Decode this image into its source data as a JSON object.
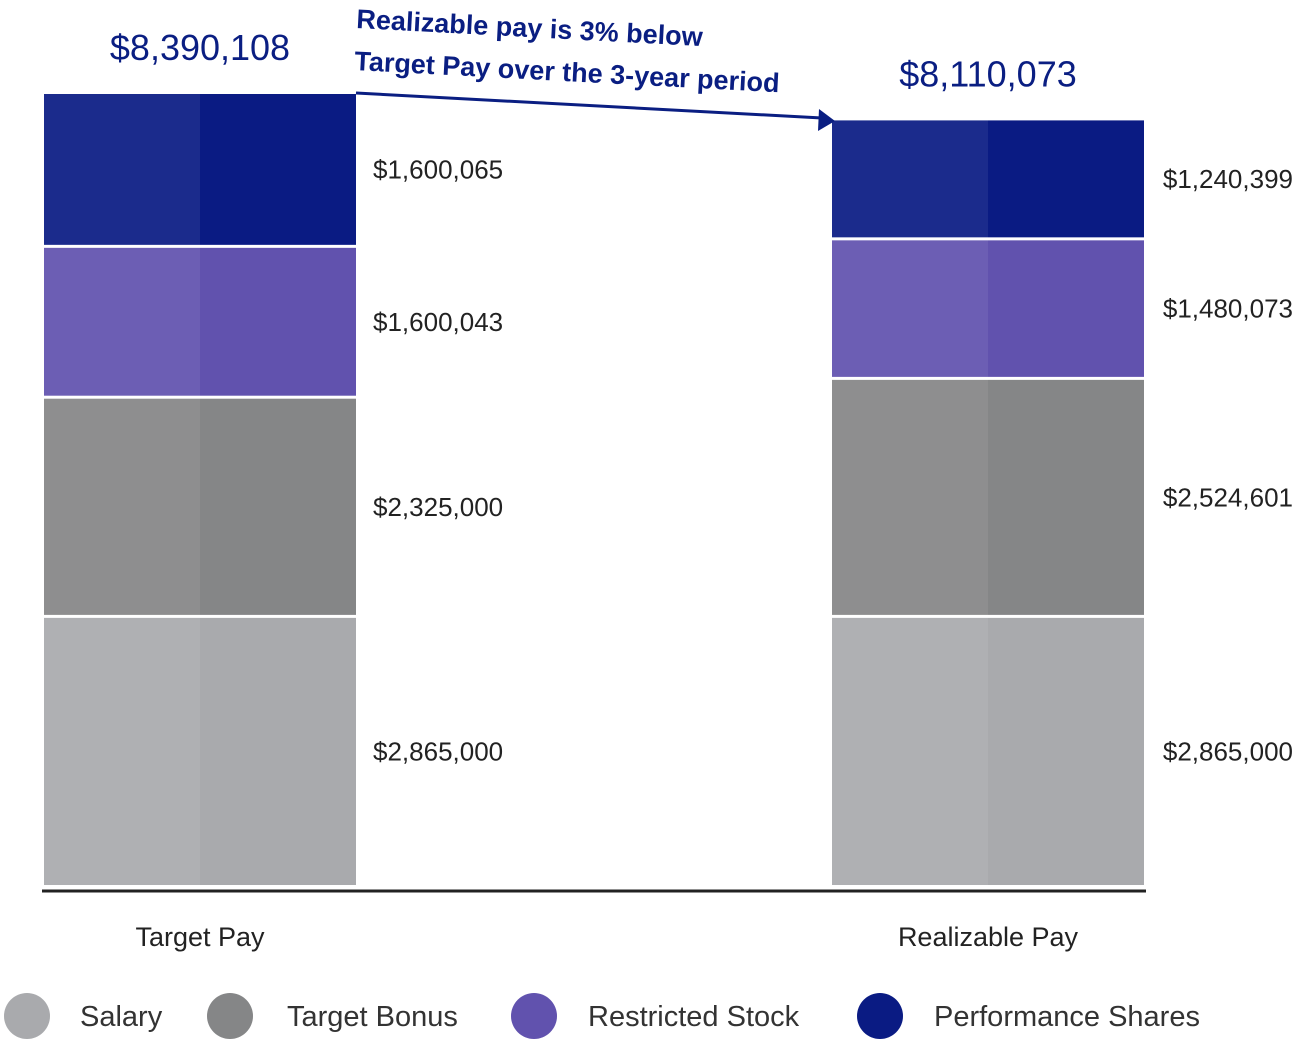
{
  "chart_data": {
    "type": "bar",
    "stacked": true,
    "categories": [
      "Target Pay",
      "Realizable Pay"
    ],
    "totals": [
      "$8,390,108",
      "$8,110,073"
    ],
    "series": [
      {
        "name": "Salary",
        "color": "#a9aaad",
        "values": [
          2865000,
          2865000
        ],
        "labels": [
          "$2,865,000",
          "$2,865,000"
        ]
      },
      {
        "name": "Target Bonus",
        "color": "#858687",
        "values": [
          2325000,
          2524601
        ],
        "labels": [
          "$2,325,000",
          "$2,524,601"
        ]
      },
      {
        "name": "Restricted Stock",
        "color": "#6152ae",
        "values": [
          1600043,
          1480073
        ],
        "labels": [
          "$1,600,043",
          "$1,480,073"
        ]
      },
      {
        "name": "Performance Shares",
        "color": "#0a1b83",
        "values": [
          1600065,
          1240399
        ],
        "labels": [
          "$1,600,065",
          "$1,240,399"
        ]
      }
    ],
    "annotation": {
      "line1": "Realizable pay is 3% below",
      "line2": "Target Pay over the 3-year period",
      "color": "#0a1e82"
    },
    "ylim": [
      0,
      8390108
    ],
    "xlabel": "",
    "ylabel": "",
    "legend_position": "bottom"
  }
}
